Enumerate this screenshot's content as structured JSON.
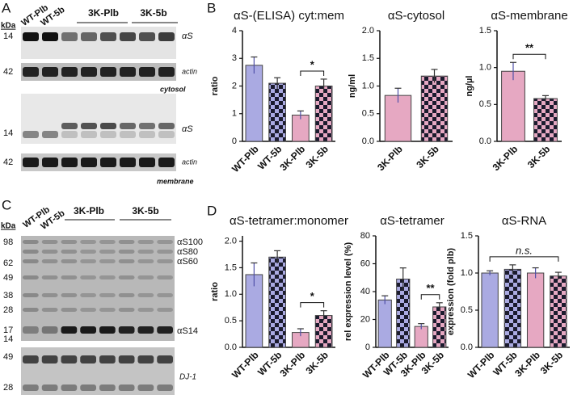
{
  "panel_labels": [
    "A",
    "B",
    "C",
    "D"
  ],
  "blot_a": {
    "kda": "kDa",
    "lanes": [
      "WT-Plb",
      "WT-5b"
    ],
    "groups": [
      "3K-Plb",
      "3K-5b"
    ],
    "markers": [
      "14",
      "42",
      "14",
      "42"
    ],
    "bands": [
      "αS",
      "actin",
      "αS",
      "actin"
    ],
    "fractions": [
      "cytosol",
      "membrane"
    ]
  },
  "blot_c": {
    "kda": "kDa",
    "lanes": [
      "WT-Plb",
      "WT-5b"
    ],
    "groups": [
      "3K-Plb",
      "3K-5b"
    ],
    "markers": [
      "98",
      "62",
      "49",
      "38",
      "28",
      "17",
      "14",
      "49",
      "28"
    ],
    "species": [
      "αS100",
      "αS80",
      "αS60",
      "αS14"
    ],
    "loading": "DJ-1"
  },
  "chart_data": [
    {
      "type": "bar",
      "title": "αS-(ELISA) cyt:mem",
      "y_label": "ratio",
      "categories": [
        "WT-Plb",
        "WT-5b",
        "3K-Plb",
        "3K-5b"
      ],
      "values": [
        2.75,
        2.1,
        0.95,
        2.0
      ],
      "errors": [
        0.3,
        0.2,
        0.15,
        0.25
      ],
      "colors": [
        "#aaaae2",
        "#aaaae2",
        "#e6a8c2",
        "#e6a8c2"
      ],
      "checkered": [
        false,
        true,
        false,
        true
      ],
      "ylim": [
        0,
        4
      ],
      "yticks": [
        0,
        1,
        2,
        3,
        4
      ],
      "significance": [
        {
          "label": "*",
          "from": 2,
          "to": 3
        }
      ]
    },
    {
      "type": "bar",
      "title": "αS-cytosol",
      "y_label": "ng/ml",
      "categories": [
        "3K-Plb",
        "3K-5b"
      ],
      "values": [
        0.83,
        1.18
      ],
      "errors": [
        0.13,
        0.12
      ],
      "colors": [
        "#e6a8c2",
        "#e6a8c2"
      ],
      "checkered": [
        false,
        true
      ],
      "ylim": [
        0,
        2
      ],
      "yticks": [
        {
          "value": 0,
          "label": "0.0"
        },
        0.5,
        {
          "value": 1,
          "label": "1.0"
        },
        1.5,
        {
          "value": 2,
          "label": "2.0"
        }
      ],
      "significance": []
    },
    {
      "type": "bar",
      "title": "αS-membrane",
      "y_label": "ng/µl",
      "categories": [
        "3K-Plb",
        "3K-5b"
      ],
      "values": [
        0.95,
        0.58
      ],
      "errors": [
        0.12,
        0.04
      ],
      "colors": [
        "#e6a8c2",
        "#e6a8c2"
      ],
      "checkered": [
        false,
        true
      ],
      "ylim": [
        0,
        1.5
      ],
      "yticks": [
        {
          "value": 0,
          "label": "0.0"
        },
        0.5,
        {
          "value": 1,
          "label": "1.0"
        },
        1.5
      ],
      "significance": [
        {
          "label": "**",
          "from": 0,
          "to": 1
        }
      ]
    },
    {
      "type": "bar",
      "title": "αS-tetramer:monomer",
      "y_label": "ratio",
      "categories": [
        "WT-Plb",
        "WT-5b",
        "3K-Plb",
        "3K-5b"
      ],
      "values": [
        1.37,
        1.7,
        0.28,
        0.6
      ],
      "errors": [
        0.22,
        0.12,
        0.07,
        0.09
      ],
      "colors": [
        "#aaaae2",
        "#aaaae2",
        "#e6a8c2",
        "#e6a8c2"
      ],
      "checkered": [
        false,
        true,
        false,
        true
      ],
      "ylim": [
        0,
        2.1
      ],
      "yticks": [
        {
          "value": 0,
          "label": "0.0"
        },
        0.5,
        {
          "value": 1,
          "label": "1.0"
        },
        1.5,
        {
          "value": 2,
          "label": "2.0"
        }
      ],
      "significance": [
        {
          "label": "*",
          "from": 2,
          "to": 3
        }
      ]
    },
    {
      "type": "bar",
      "title": "αS-tetramer",
      "y_label": "rel expression level (%)",
      "categories": [
        "WT-Plb",
        "WT-5b",
        "3K-Plb",
        "3K-5b"
      ],
      "values": [
        34,
        49,
        15,
        29
      ],
      "errors": [
        3,
        8,
        2,
        3
      ],
      "colors": [
        "#aaaae2",
        "#aaaae2",
        "#e6a8c2",
        "#e6a8c2"
      ],
      "checkered": [
        false,
        true,
        false,
        true
      ],
      "ylim": [
        0,
        80
      ],
      "yticks": [
        0,
        20,
        40,
        60,
        80
      ],
      "significance": [
        {
          "label": "**",
          "from": 2,
          "to": 3
        }
      ]
    },
    {
      "type": "bar",
      "title": "αS-RNA",
      "y_label": "expression (fold plb)",
      "categories": [
        "WT-Plb",
        "WT-5b",
        "3K-Plb",
        "3K-5b"
      ],
      "values": [
        1.0,
        1.05,
        1.0,
        0.96
      ],
      "errors": [
        0.03,
        0.06,
        0.07,
        0.05
      ],
      "colors": [
        "#aaaae2",
        "#aaaae2",
        "#e6a8c2",
        "#e6a8c2"
      ],
      "checkered": [
        false,
        true,
        false,
        true
      ],
      "ylim": [
        0,
        1.5
      ],
      "yticks": [
        {
          "value": 0,
          "label": "0.0"
        },
        0.5,
        {
          "value": 1,
          "label": "1.0"
        },
        1.5
      ],
      "significance": [
        {
          "label": "n.s.",
          "from": 0,
          "to": 3
        }
      ]
    }
  ]
}
